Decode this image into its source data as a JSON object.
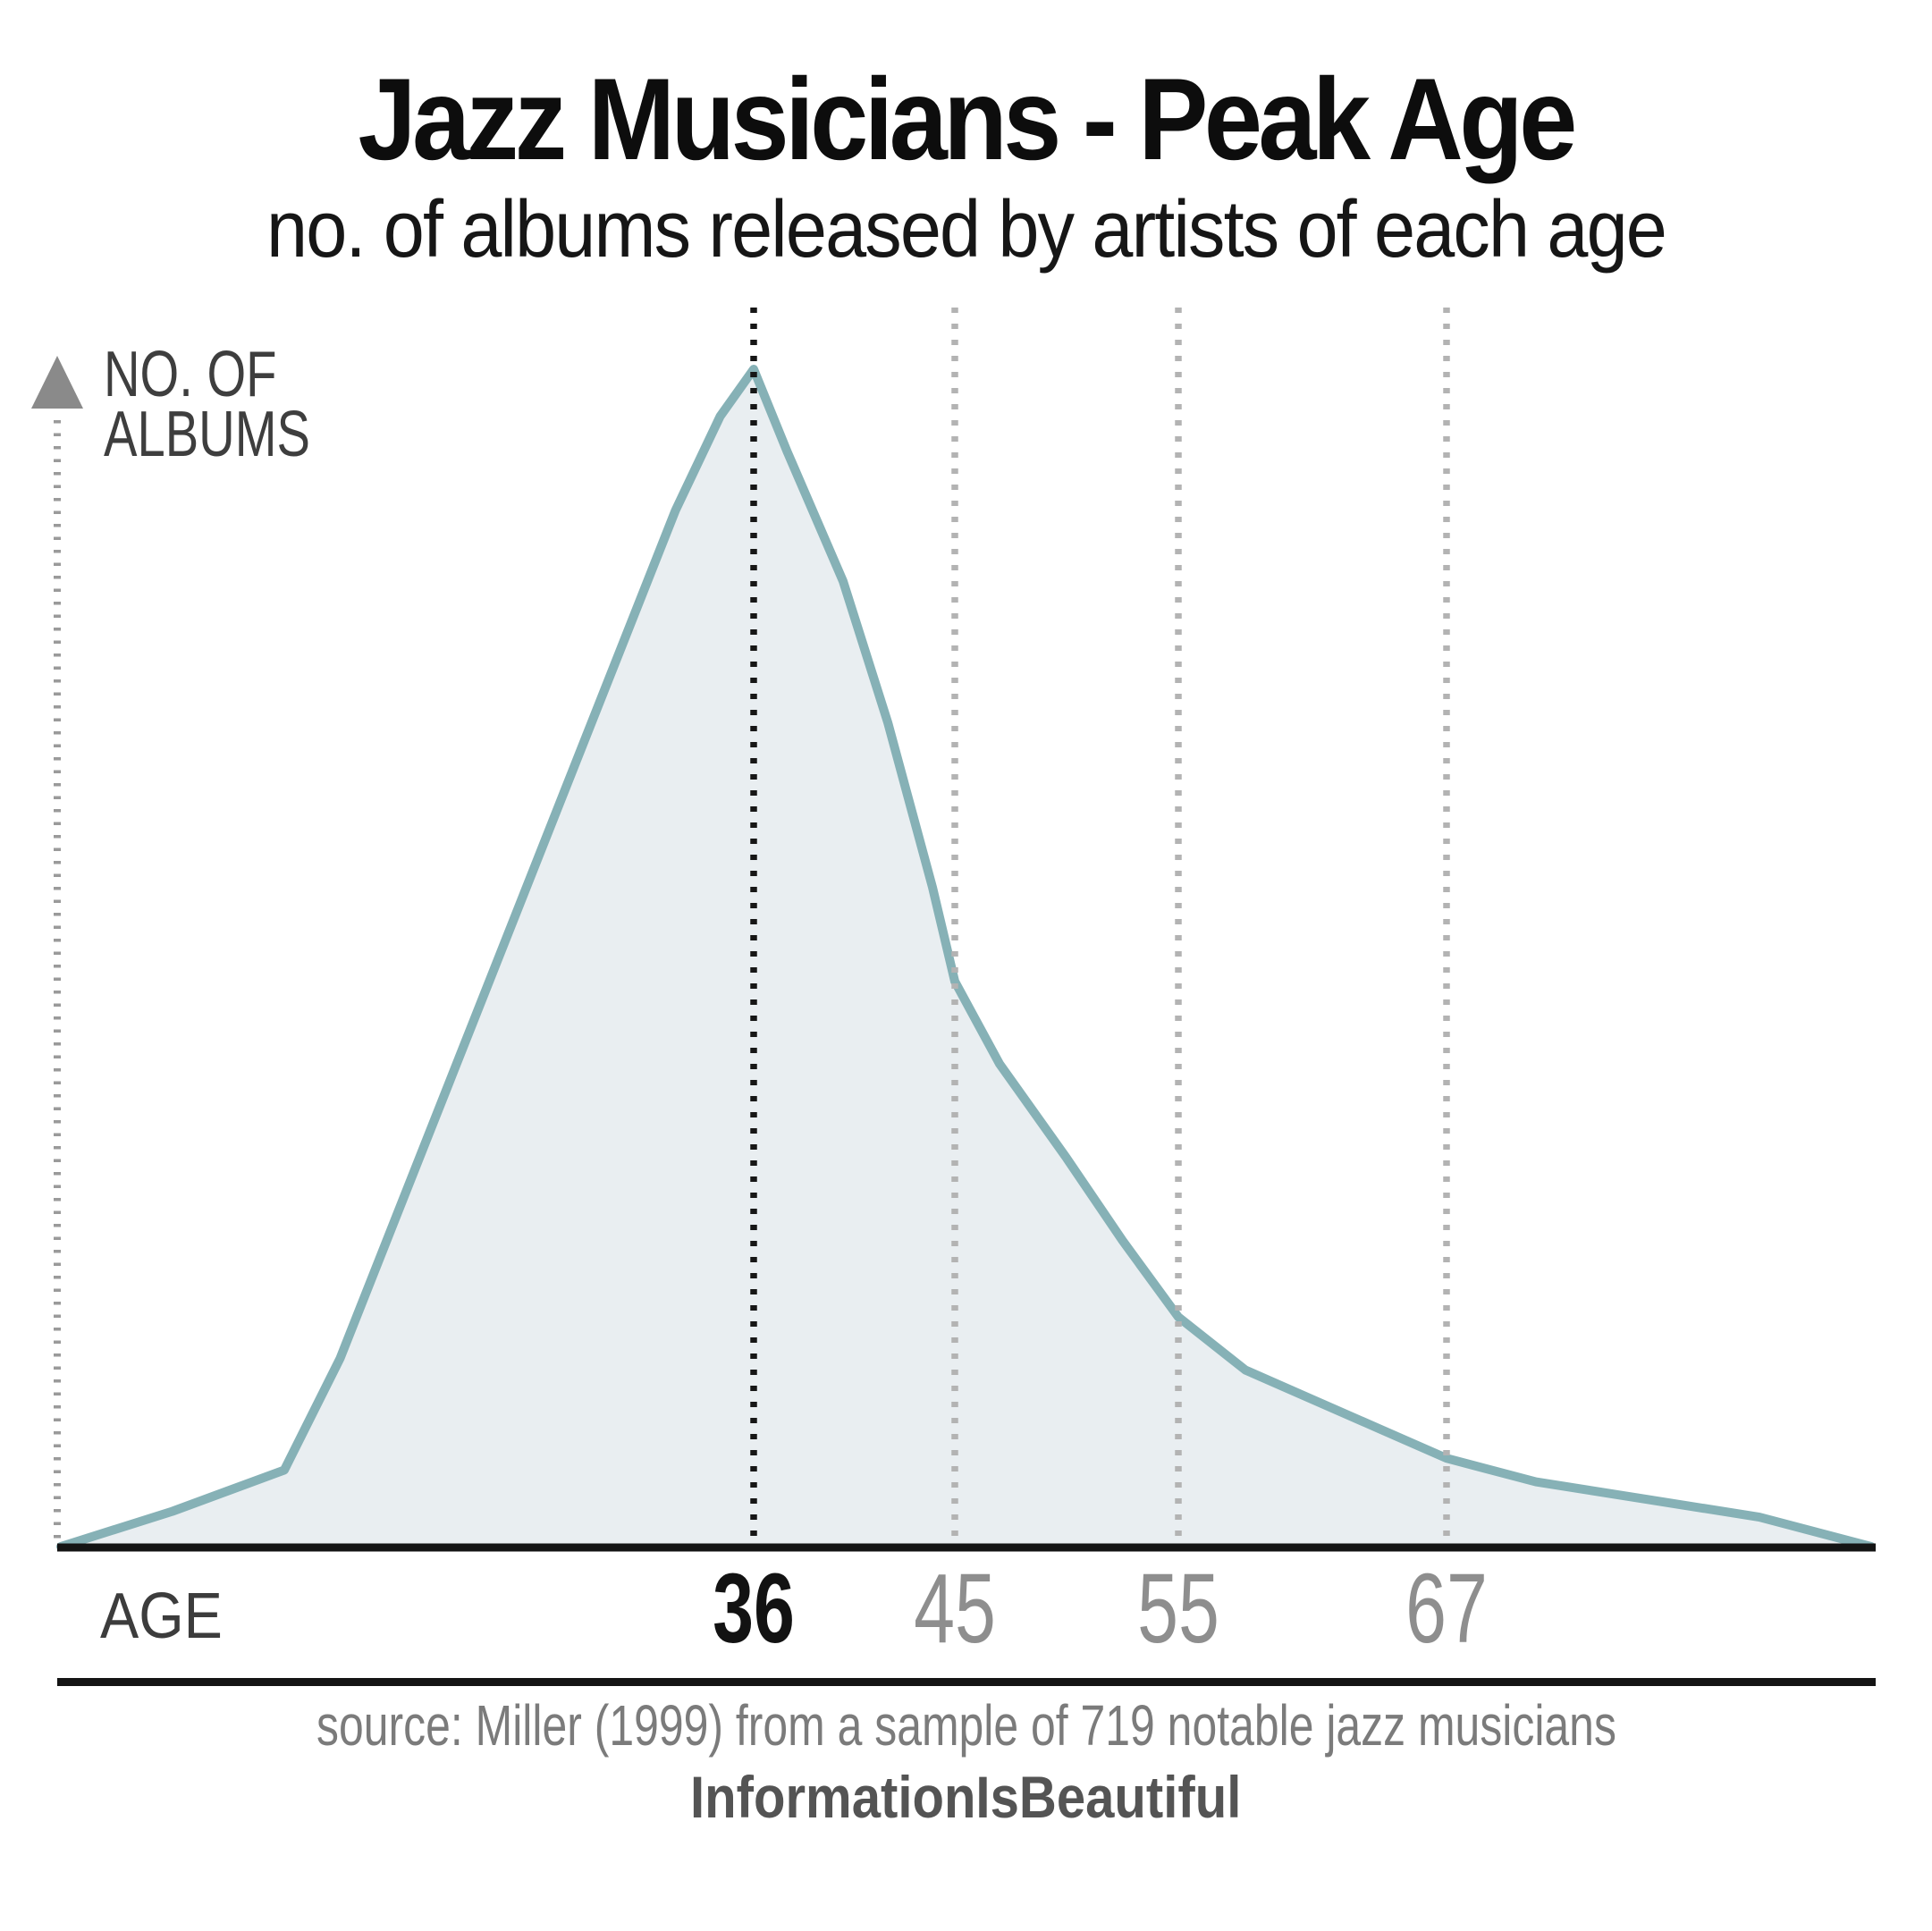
{
  "title": "Jazz Musicians - Peak Age",
  "subtitle": "no. of albums released by artists of each age",
  "y_axis_label": {
    "line1": "NO. OF",
    "line2": "ALBUMS"
  },
  "x_axis_label": "AGE",
  "source_text": "source: Miller (1999) from a sample of 719 notable jazz musicians",
  "brand_text": "InformationIsBeautiful",
  "colors": {
    "curve_stroke": "#86b1b6",
    "area_fill": "#e9eef1",
    "peak_gridline": "#161616",
    "gridline": "#b3b3b3",
    "axis_dotted": "#9a9a9a",
    "axis_arrow": "#8a8a8a",
    "baseline": "#141414",
    "tick_emphasized": "#121212",
    "tick_normal": "#8e8e8e"
  },
  "chart_data": {
    "type": "area",
    "title": "Jazz Musicians - Peak Age",
    "subtitle": "no. of albums released by artists of each age",
    "xlabel": "AGE",
    "ylabel": "NO. OF ALBUMS",
    "x_range_age": [
      5,
      86
    ],
    "y_unit": "relative no. of albums (peak = 100, y-axis unlabeled in figure)",
    "grid": "vertical dotted gridlines at marked ages; peak age gridline emphasized in black",
    "legend": "none",
    "peak_age": 36,
    "marked_ages": [
      {
        "label": "36",
        "age": 36,
        "emphasized": true
      },
      {
        "label": "45",
        "age": 45,
        "emphasized": false
      },
      {
        "label": "55",
        "age": 55,
        "emphasized": false
      },
      {
        "label": "67",
        "age": 67,
        "emphasized": false
      }
    ],
    "points": [
      {
        "age": 5,
        "value": 0
      },
      {
        "age": 10,
        "value": 3
      },
      {
        "age": 15,
        "value": 6.5
      },
      {
        "age": 17.5,
        "value": 16
      },
      {
        "age": 20,
        "value": 28
      },
      {
        "age": 22.5,
        "value": 40
      },
      {
        "age": 25,
        "value": 52
      },
      {
        "age": 27.5,
        "value": 64
      },
      {
        "age": 30,
        "value": 76
      },
      {
        "age": 32.5,
        "value": 88
      },
      {
        "age": 34.5,
        "value": 96
      },
      {
        "age": 36,
        "value": 100
      },
      {
        "age": 37.5,
        "value": 93
      },
      {
        "age": 40,
        "value": 82
      },
      {
        "age": 42,
        "value": 70
      },
      {
        "age": 44,
        "value": 56
      },
      {
        "age": 45,
        "value": 48
      },
      {
        "age": 47,
        "value": 41
      },
      {
        "age": 50,
        "value": 33
      },
      {
        "age": 52.5,
        "value": 26
      },
      {
        "age": 55,
        "value": 19.5
      },
      {
        "age": 58,
        "value": 15
      },
      {
        "age": 61,
        "value": 12.5
      },
      {
        "age": 64,
        "value": 10
      },
      {
        "age": 67,
        "value": 7.5
      },
      {
        "age": 71,
        "value": 5.5
      },
      {
        "age": 76,
        "value": 4
      },
      {
        "age": 81,
        "value": 2.5
      },
      {
        "age": 86,
        "value": 0
      }
    ]
  }
}
